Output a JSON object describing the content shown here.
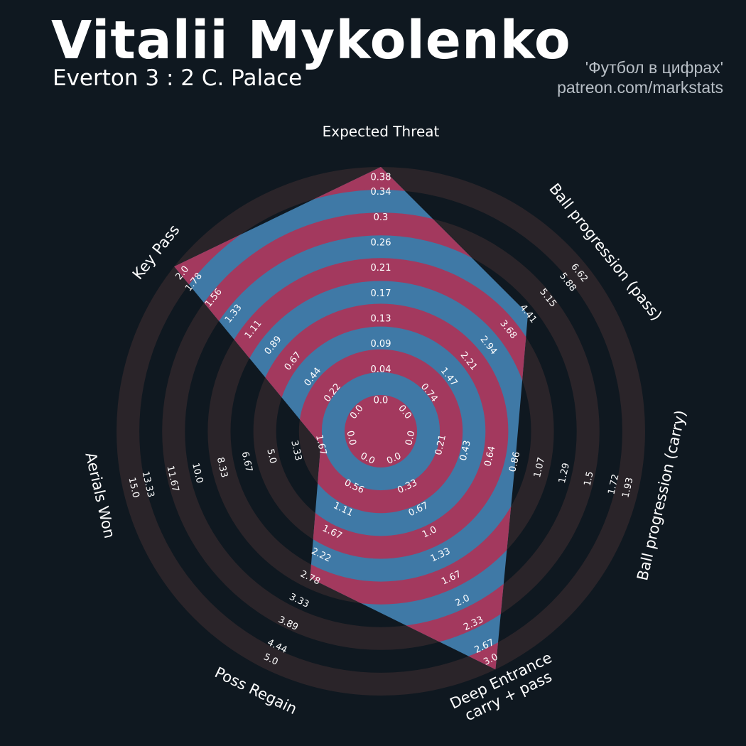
{
  "header": {
    "title": "Vitalii Mykolenko",
    "subtitle": "Everton 3 : 2 C. Palace",
    "credit_line1": "'Футбол в цифрах'",
    "credit_line2": "patreon.com/markstats"
  },
  "colors": {
    "background": "#0f1820",
    "ring_outer": "#2a2429",
    "ring_inner": "#a3395e",
    "player_fill": "#3f79a6",
    "text": "#ffffff"
  },
  "chart_data": {
    "type": "radar",
    "parameters": [
      {
        "label": "Expected Threat",
        "value": 0.38,
        "ticks": [
          "0.0",
          "0.04",
          "0.09",
          "0.13",
          "0.17",
          "0.21",
          "0.26",
          "0.3",
          "0.34",
          "0.38"
        ]
      },
      {
        "label": "Ball progression (pass)",
        "value": 4.41,
        "ticks": [
          "0.0",
          "0.74",
          "1.47",
          "2.21",
          "2.94",
          "3.68",
          "4.41",
          "5.15",
          "5.88",
          "6.62"
        ]
      },
      {
        "label": "Ball progression (carry)",
        "value": 0.86,
        "ticks": [
          "0.0",
          "0.21",
          "0.43",
          "0.64",
          "0.86",
          "1.07",
          "1.29",
          "1.5",
          "1.72",
          "1.93"
        ]
      },
      {
        "label": "Deep Entrance\ncarry + pass",
        "value": 3.0,
        "ticks": [
          "0.0",
          "0.33",
          "0.67",
          "1.0",
          "1.33",
          "1.67",
          "2.0",
          "2.33",
          "2.67",
          "3.0"
        ]
      },
      {
        "label": "Poss Regain",
        "value": 2.78,
        "ticks": [
          "0.0",
          "0.56",
          "1.11",
          "1.67",
          "2.22",
          "2.78",
          "3.33",
          "3.89",
          "4.44",
          "5.0"
        ]
      },
      {
        "label": "Aerials Won",
        "value": 1.67,
        "ticks": [
          "0.0",
          "1.67",
          "3.33",
          "5.0",
          "6.67",
          "8.33",
          "10.0",
          "11.67",
          "13.33",
          "15.0"
        ]
      },
      {
        "label": "Key Pass",
        "value": 2.0,
        "ticks": [
          "0.0",
          "0.22",
          "0.44",
          "0.67",
          "0.89",
          "1.11",
          "1.33",
          "1.56",
          "1.78",
          "2.0"
        ]
      }
    ]
  }
}
